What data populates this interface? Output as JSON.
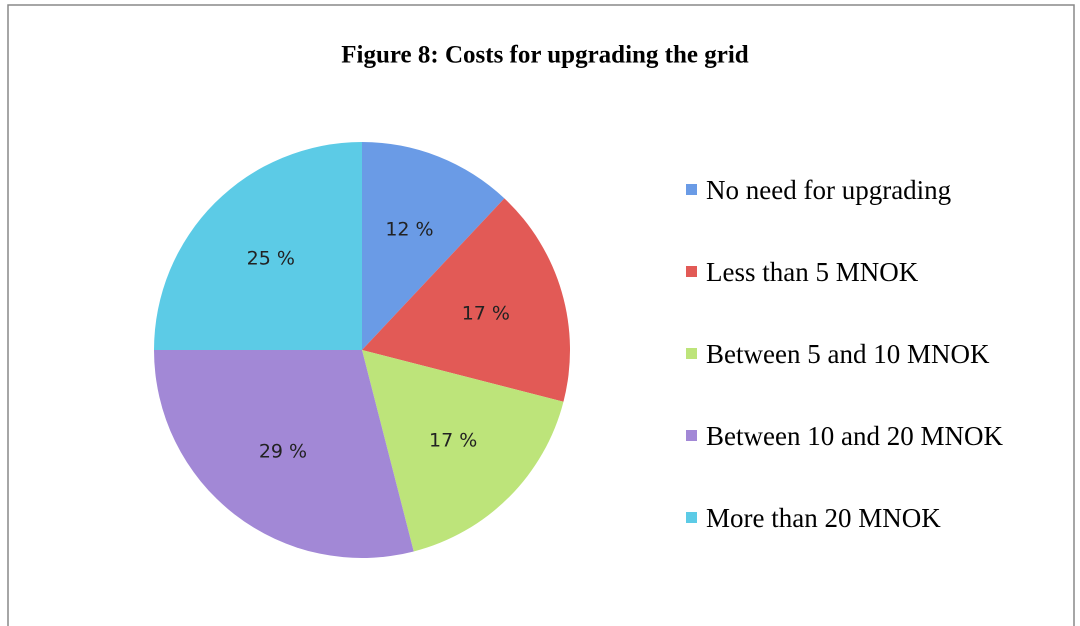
{
  "chart_data": {
    "type": "pie",
    "title": "Figure 8: Costs for upgrading the grid",
    "categories": [
      "No need for upgrading",
      "Less than 5 MNOK",
      "Between 5 and 10 MNOK",
      "Between 10 and 20 MNOK",
      "More than 20 MNOK"
    ],
    "values": [
      12,
      17,
      17,
      29,
      25
    ],
    "value_labels": [
      "12 %",
      "17 %",
      "17 %",
      "29 %",
      "25 %"
    ],
    "colors": [
      "#6a9be6",
      "#e25a56",
      "#bde47a",
      "#a288d6",
      "#5ccbe6"
    ],
    "legend": "right"
  }
}
